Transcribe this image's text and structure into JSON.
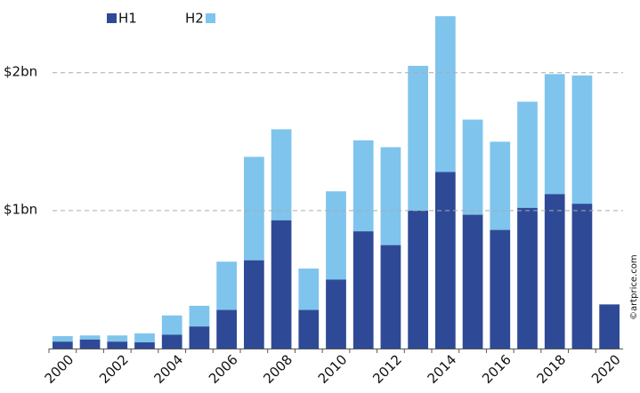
{
  "chart_data": {
    "type": "stacked-bar",
    "categories": [
      "2000",
      null,
      "2002",
      null,
      "2004",
      null,
      "2006",
      null,
      "2008",
      null,
      "2010",
      null,
      "2012",
      null,
      "2014",
      null,
      "2016",
      null,
      "2018",
      null,
      "2020"
    ],
    "series": [
      {
        "name": "H1",
        "color": "#2e4a96",
        "values": [
          0.05,
          0.065,
          0.05,
          0.045,
          0.1,
          0.16,
          0.28,
          0.64,
          0.93,
          0.28,
          0.5,
          0.85,
          0.75,
          1.0,
          1.28,
          0.97,
          0.86,
          1.02,
          1.12,
          1.05,
          0.32
        ]
      },
      {
        "name": "H2",
        "color": "#7fc4ec",
        "values": [
          0.04,
          0.03,
          0.045,
          0.065,
          0.14,
          0.15,
          0.35,
          0.75,
          0.66,
          0.3,
          0.64,
          0.66,
          0.71,
          1.05,
          1.13,
          0.69,
          0.64,
          0.77,
          0.87,
          0.93,
          null
        ]
      }
    ],
    "ylim": [
      0,
      2.45
    ],
    "yticks": [
      {
        "value": 1,
        "label": "$1bn"
      },
      {
        "value": 2,
        "label": "$2bn"
      }
    ],
    "grid": true,
    "legend": "top-left",
    "watermark": "©artprice.com"
  }
}
